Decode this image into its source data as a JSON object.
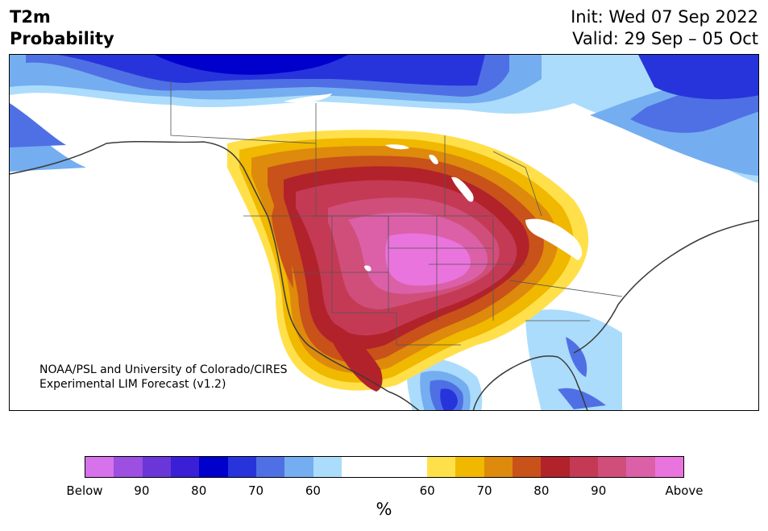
{
  "title": {
    "line1": "T2m",
    "line2": "Probability"
  },
  "init": {
    "line1": "Init: Wed 07 Sep 2022",
    "line2": "Valid: 29 Sep – 05 Oct"
  },
  "credit": {
    "line1": "NOAA/PSL and University of Colorado/CIRES",
    "line2": "Experimental LIM Forecast (v1.2)"
  },
  "colorbar": {
    "unit": "%",
    "below_colors": [
      "#d672ea",
      "#9c4fe0",
      "#6b36d8",
      "#3b1fd6",
      "#0000cc",
      "#2734dc",
      "#4f70e4",
      "#74aef0",
      "#acdcfb"
    ],
    "neutral_color": "#ffffff",
    "above_colors": [
      "#ffe04a",
      "#f1b800",
      "#de8a0c",
      "#c85219",
      "#b2222b",
      "#c43a55",
      "#cf4f7a",
      "#db60a8",
      "#ea74dd"
    ],
    "tick_labels": [
      "Below",
      "90",
      "80",
      "70",
      "60",
      "60",
      "70",
      "80",
      "90",
      "Above"
    ]
  }
}
